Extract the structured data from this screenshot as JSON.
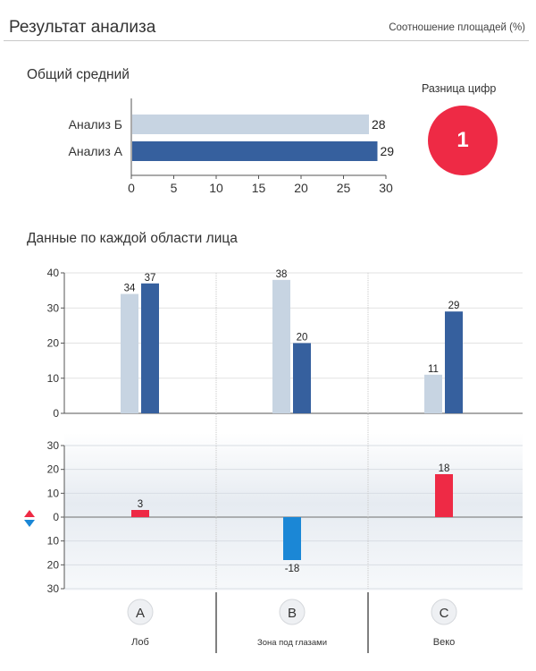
{
  "header": {
    "title": "Результат анализа",
    "subtitle": "Соотношение площадей (%)"
  },
  "overall": {
    "title": "Общий средний"
  },
  "difference": {
    "label": "Разница цифр",
    "value": "1"
  },
  "regions": {
    "title": "Данные по каждой области лица"
  },
  "colors": {
    "light": "#c7d4e2",
    "dark": "#36609e",
    "positive": "#ee2a45",
    "negative": "#1b87d6"
  },
  "chart_data": [
    {
      "type": "bar",
      "orientation": "horizontal",
      "title": "Общий средний",
      "categories": [
        "Анализ Б",
        "Анализ  А"
      ],
      "values": [
        28,
        29
      ],
      "xlim": [
        0,
        30
      ],
      "xticks": [
        "0",
        "5",
        "10",
        "15",
        "20",
        "25",
        "30"
      ]
    },
    {
      "type": "bar",
      "title": "Данные по каждой области лица",
      "categories": [
        "Лоб",
        "Зона под глазами",
        "Веко"
      ],
      "series": [
        {
          "values": [
            34,
            38,
            11
          ]
        },
        {
          "values": [
            37,
            20,
            29
          ]
        }
      ],
      "ylim": [
        0,
        40
      ],
      "yticks": [
        "0",
        "10",
        "20",
        "30",
        "40"
      ]
    },
    {
      "type": "bar",
      "categories": [
        "Лоб",
        "Зона под глазами",
        "Веко"
      ],
      "values": [
        3,
        -18,
        18
      ],
      "value_labels": [
        "3",
        "-18",
        "18"
      ],
      "ylim": [
        -30,
        30
      ],
      "yticks": [
        "30",
        "20",
        "10",
        "0",
        "10",
        "20",
        "30"
      ]
    }
  ],
  "region_letters": [
    "A",
    "B",
    "C"
  ],
  "region_names": [
    "Лоб",
    "Зона под глазами",
    "Веко"
  ]
}
